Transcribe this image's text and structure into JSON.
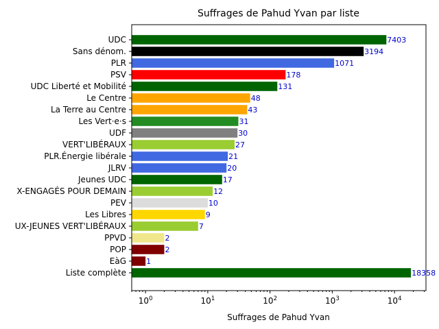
{
  "chart_data": {
    "type": "bar",
    "orientation": "horizontal",
    "title": "Suffrages de Pahud Yvan par liste",
    "xlabel": "Suffrages de Pahud Yvan",
    "ylabel": "",
    "x_scale": "log",
    "xlim": [
      0.6,
      32000
    ],
    "x_ticks": [
      {
        "value": 1,
        "base": "10",
        "exp": "0"
      },
      {
        "value": 10,
        "base": "10",
        "exp": "1"
      },
      {
        "value": 100,
        "base": "10",
        "exp": "2"
      },
      {
        "value": 1000,
        "base": "10",
        "exp": "3"
      },
      {
        "value": 10000,
        "base": "10",
        "exp": "4"
      }
    ],
    "value_label_color": "#0000cc",
    "grid": false,
    "categories": [
      "UDC",
      "Sans dénom.",
      "PLR",
      "PSV",
      "UDC Liberté et Mobilité",
      "Le Centre",
      "La Terre au Centre",
      "Les Vert·e·s",
      "UDF",
      "VERT'LIBÉRAUX",
      "PLR.Énergie libérale",
      "JLRV",
      "Jeunes UDC",
      "X-ENGAGÉS POUR DEMAIN",
      "PEV",
      "Les Libres",
      "UX-JEUNES VERT'LIBÉRAUX",
      "PPVD",
      "POP",
      "EàG",
      "Liste complète"
    ],
    "values": [
      7403,
      3194,
      1071,
      178,
      131,
      48,
      43,
      31,
      30,
      27,
      21,
      20,
      17,
      12,
      10,
      9,
      7,
      2,
      2,
      1,
      18358
    ],
    "value_labels": [
      "7403",
      "3194",
      "1071",
      "178",
      "131",
      "48",
      "43",
      "31",
      "30",
      "27",
      "21",
      "20",
      "17",
      "12",
      "10",
      "9",
      "7",
      "2",
      "2",
      "1",
      "18358"
    ],
    "colors": [
      "#006400",
      "#000000",
      "#4169e1",
      "#ff0000",
      "#006400",
      "#ffa500",
      "#ffa500",
      "#228b22",
      "#808080",
      "#9acd32",
      "#4169e1",
      "#4169e1",
      "#006400",
      "#9acd32",
      "#dcdcdc",
      "#ffd700",
      "#9acd32",
      "#f0e68c",
      "#800000",
      "#800000",
      "#006400"
    ]
  }
}
